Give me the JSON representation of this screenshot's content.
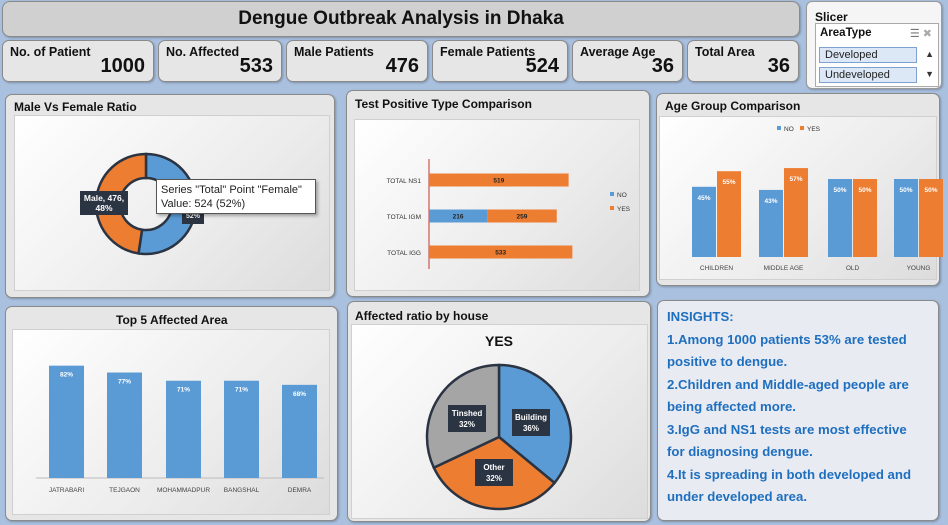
{
  "title": "Dengue Outbreak Analysis in Dhaka",
  "kpis": [
    {
      "label": "No. of Patient",
      "value": "1000"
    },
    {
      "label": "No. Affected",
      "value": "533"
    },
    {
      "label": "Male Patients",
      "value": "476"
    },
    {
      "label": "Female Patients",
      "value": "524"
    },
    {
      "label": "Average Age",
      "value": "36"
    },
    {
      "label": "Total Area",
      "value": "36"
    }
  ],
  "slicer": {
    "title": "Slicer",
    "header": "AreaType",
    "items": [
      "Developed",
      "Undeveloped"
    ]
  },
  "gender_chart": {
    "title": "Male Vs Female Ratio",
    "male_label_line1": "Male, 476,",
    "male_label_line2": "48%",
    "female_label_fragment": "52%",
    "tooltip_line1": "Series \"Total\" Point \"Female\"",
    "tooltip_line2": "Value: 524 (52%)"
  },
  "test_chart": {
    "title": "Test Positive Type Comparison"
  },
  "age_chart": {
    "title": "Age Group Comparison"
  },
  "area_chart": {
    "title": "Top 5 Affected Area"
  },
  "house_chart": {
    "title": "Affected ratio by house",
    "inner_title": "YES"
  },
  "insights": {
    "lines": [
      "INSIGHTS:",
      "1.Among 1000 patients 53% are tested",
      "positive to dengue.",
      "2.Children and Middle-aged people are",
      "being affected more.",
      "3.IgG and NS1 tests are most effective",
      "for diagnosing dengue.",
      "4.It is spreading in both developed and",
      "under developed area."
    ]
  },
  "colors": {
    "blue": "#5b9bd5",
    "orange": "#ed7d31",
    "gray": "#a5a5a5",
    "insight_text": "#1f6fbf"
  },
  "chart_data": [
    {
      "type": "pie",
      "title": "Male Vs Female Ratio",
      "categories": [
        "Male",
        "Female"
      ],
      "values": [
        476,
        524
      ],
      "percent": [
        48,
        52
      ]
    },
    {
      "type": "bar",
      "title": "Test Positive Type Comparison",
      "categories": [
        "TOTAL NS1",
        "TOTAL IGM",
        "TOTAL IGG"
      ],
      "series": [
        {
          "name": "NO",
          "values": [
            0,
            216,
            0
          ]
        },
        {
          "name": "YES",
          "values": [
            519,
            259,
            533
          ]
        }
      ],
      "legend": "right"
    },
    {
      "type": "bar",
      "title": "Age Group Comparison",
      "categories": [
        "CHILDREN",
        "MIDDLE AGE",
        "OLD",
        "YOUNG"
      ],
      "series": [
        {
          "name": "NO",
          "values": [
            45,
            43,
            50,
            50
          ]
        },
        {
          "name": "YES",
          "values": [
            55,
            57,
            50,
            50
          ]
        }
      ],
      "value_suffix": "%",
      "legend": "top"
    },
    {
      "type": "bar",
      "title": "Top 5 Affected Area",
      "categories": [
        "JATRABARI",
        "TEJGAON",
        "MOHAMMADPUR",
        "BANGSHAL",
        "DEMRA"
      ],
      "values": [
        82,
        77,
        71,
        71,
        68
      ],
      "value_suffix": "%"
    },
    {
      "type": "pie",
      "title": "Affected ratio by house",
      "subtitle": "YES",
      "categories": [
        "Building",
        "Other",
        "Tinshed"
      ],
      "values": [
        36,
        32,
        32
      ],
      "value_suffix": "%"
    }
  ]
}
